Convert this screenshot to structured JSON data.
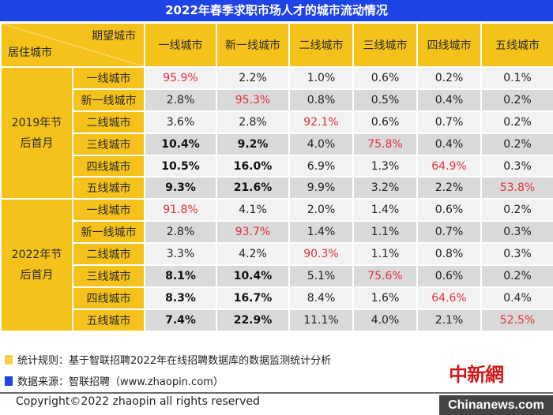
{
  "title": "2022年春季求职市场人才的城市流动情况",
  "header": {
    "corner_top": "期望城市",
    "corner_bottom": "居住城市",
    "columns": [
      "一线城市",
      "新一线城市",
      "二线城市",
      "三线城市",
      "四线城市",
      "五线城市"
    ]
  },
  "groups": [
    {
      "label_line1": "2019年节",
      "label_line2": "后首月",
      "rows": [
        {
          "city": "一线城市",
          "values": [
            "95.9%",
            "2.2%",
            "1.0%",
            "0.6%",
            "0.2%",
            "0.1%"
          ]
        },
        {
          "city": "新一线城市",
          "values": [
            "2.8%",
            "95.3%",
            "0.8%",
            "0.5%",
            "0.4%",
            "0.2%"
          ]
        },
        {
          "city": "二线城市",
          "values": [
            "3.6%",
            "2.8%",
            "92.1%",
            "0.6%",
            "0.7%",
            "0.2%"
          ]
        },
        {
          "city": "三线城市",
          "values": [
            "10.4%",
            "9.2%",
            "4.0%",
            "75.8%",
            "0.4%",
            "0.2%"
          ]
        },
        {
          "city": "四线城市",
          "values": [
            "10.5%",
            "16.0%",
            "6.9%",
            "1.3%",
            "64.9%",
            "0.3%"
          ]
        },
        {
          "city": "五线城市",
          "values": [
            "9.3%",
            "21.6%",
            "9.9%",
            "3.2%",
            "2.2%",
            "53.8%"
          ]
        }
      ]
    },
    {
      "label_line1": "2022年节",
      "label_line2": "后首月",
      "rows": [
        {
          "city": "一线城市",
          "values": [
            "91.8%",
            "4.1%",
            "2.0%",
            "1.4%",
            "0.6%",
            "0.2%"
          ]
        },
        {
          "city": "新一线城市",
          "values": [
            "2.8%",
            "93.7%",
            "1.4%",
            "1.1%",
            "0.7%",
            "0.3%"
          ]
        },
        {
          "city": "二线城市",
          "values": [
            "3.3%",
            "4.2%",
            "90.3%",
            "1.1%",
            "0.8%",
            "0.3%"
          ]
        },
        {
          "city": "三线城市",
          "values": [
            "8.1%",
            "10.4%",
            "5.1%",
            "75.6%",
            "0.6%",
            "0.2%"
          ]
        },
        {
          "city": "四线城市",
          "values": [
            "8.3%",
            "16.7%",
            "8.4%",
            "1.6%",
            "64.6%",
            "0.4%"
          ]
        },
        {
          "city": "五线城市",
          "values": [
            "7.4%",
            "22.9%",
            "11.1%",
            "4.0%",
            "2.1%",
            "52.5%"
          ]
        }
      ]
    }
  ],
  "legend": [
    {
      "color": "#f7d04a",
      "text": "统计规则：基于智联招聘2022年在线招聘数据库的数据监测统计分析"
    },
    {
      "color": "#1f44e6",
      "text": "数据来源：智联招聘（www.zhaopin.com）"
    }
  ],
  "copyright": "Copyright©2022 zhaopin all rights reserved",
  "watermark": {
    "cn": "中新網",
    "en": "Chinanews.com"
  },
  "colors": {
    "title_bg": "#1f44e6",
    "header_bg": "#f5c21b",
    "highlight": "#e0323c",
    "row_light": "#f2f2f2",
    "row_dark": "#d9d9d9"
  },
  "chart_data": {
    "type": "table",
    "title": "2022年春季求职市场人才的城市流动情况",
    "row_axis_label": "居住城市",
    "col_axis_label": "期望城市",
    "columns": [
      "一线城市",
      "新一线城市",
      "二线城市",
      "三线城市",
      "四线城市",
      "五线城市"
    ],
    "series": [
      {
        "name": "2019年节后首月",
        "rows": [
          "一线城市",
          "新一线城市",
          "二线城市",
          "三线城市",
          "四线城市",
          "五线城市"
        ],
        "values": [
          [
            95.9,
            2.2,
            1.0,
            0.6,
            0.2,
            0.1
          ],
          [
            2.8,
            95.3,
            0.8,
            0.5,
            0.4,
            0.2
          ],
          [
            3.6,
            2.8,
            92.1,
            0.6,
            0.7,
            0.2
          ],
          [
            10.4,
            9.2,
            4.0,
            75.8,
            0.4,
            0.2
          ],
          [
            10.5,
            16.0,
            6.9,
            1.3,
            64.9,
            0.3
          ],
          [
            9.3,
            21.6,
            9.9,
            3.2,
            2.2,
            53.8
          ]
        ]
      },
      {
        "name": "2022年节后首月",
        "rows": [
          "一线城市",
          "新一线城市",
          "二线城市",
          "三线城市",
          "四线城市",
          "五线城市"
        ],
        "values": [
          [
            91.8,
            4.1,
            2.0,
            1.4,
            0.6,
            0.2
          ],
          [
            2.8,
            93.7,
            1.4,
            1.1,
            0.7,
            0.3
          ],
          [
            3.3,
            4.2,
            90.3,
            1.1,
            0.8,
            0.3
          ],
          [
            8.1,
            10.4,
            5.1,
            75.6,
            0.6,
            0.2
          ],
          [
            8.3,
            16.7,
            8.4,
            1.6,
            64.6,
            0.4
          ],
          [
            7.4,
            22.9,
            11.1,
            4.0,
            2.1,
            52.5
          ]
        ]
      }
    ],
    "unit": "%",
    "annotations": [
      "统计规则：基于智联招聘2022年在线招聘数据库的数据监测统计分析",
      "数据来源：智联招聘（www.zhaopin.com）"
    ]
  }
}
